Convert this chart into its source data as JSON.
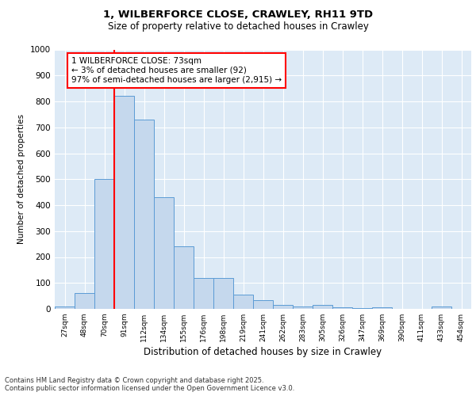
{
  "title": "1, WILBERFORCE CLOSE, CRAWLEY, RH11 9TD",
  "subtitle": "Size of property relative to detached houses in Crawley",
  "xlabel": "Distribution of detached houses by size in Crawley",
  "ylabel": "Number of detached properties",
  "categories": [
    "27sqm",
    "48sqm",
    "70sqm",
    "91sqm",
    "112sqm",
    "134sqm",
    "155sqm",
    "176sqm",
    "198sqm",
    "219sqm",
    "241sqm",
    "262sqm",
    "283sqm",
    "305sqm",
    "326sqm",
    "347sqm",
    "369sqm",
    "390sqm",
    "411sqm",
    "433sqm",
    "454sqm"
  ],
  "values": [
    8,
    60,
    500,
    820,
    730,
    430,
    240,
    120,
    120,
    55,
    35,
    15,
    10,
    15,
    5,
    3,
    5,
    0,
    0,
    8,
    0
  ],
  "bar_color": "#c5d8ed",
  "bar_edge_color": "#5b9bd5",
  "vline_color": "red",
  "annotation_text": "1 WILBERFORCE CLOSE: 73sqm\n← 3% of detached houses are smaller (92)\n97% of semi-detached houses are larger (2,915) →",
  "annotation_box_color": "red",
  "ylim": [
    0,
    1000
  ],
  "yticks": [
    0,
    100,
    200,
    300,
    400,
    500,
    600,
    700,
    800,
    900,
    1000
  ],
  "footer_line1": "Contains HM Land Registry data © Crown copyright and database right 2025.",
  "footer_line2": "Contains public sector information licensed under the Open Government Licence v3.0.",
  "bg_color": "#ddeaf6",
  "plot_bg_color": "#ddeaf6"
}
